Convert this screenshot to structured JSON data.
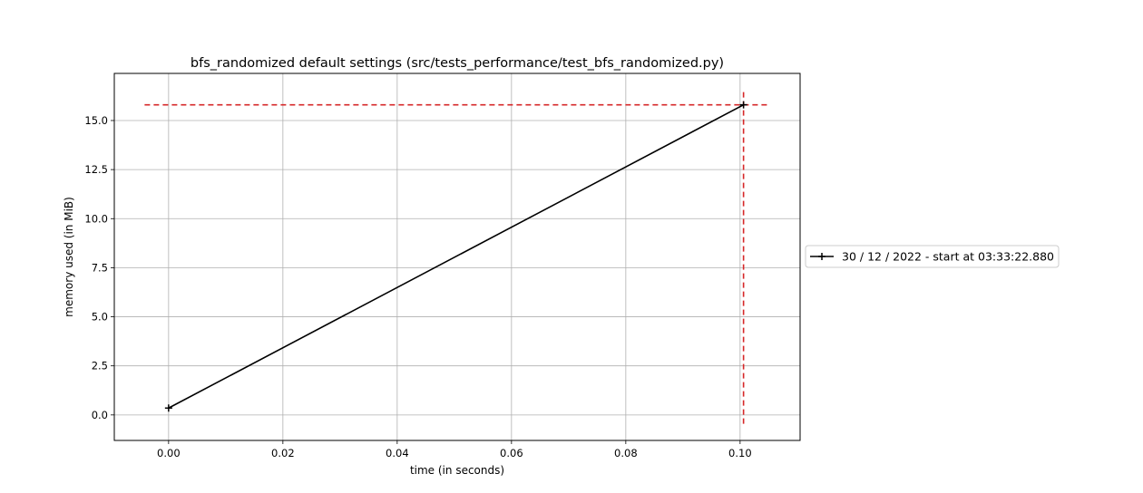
{
  "chart_data": {
    "type": "line",
    "title": "bfs_randomized default settings (src/tests_performance/test_bfs_randomized.py)",
    "xlabel": "time (in seconds)",
    "ylabel": "memory used (in MiB)",
    "xlim": [
      -0.0095,
      0.1105
    ],
    "ylim": [
      -1.3,
      17.4
    ],
    "x_ticks": [
      0.0,
      0.02,
      0.04,
      0.06,
      0.08,
      0.1
    ],
    "x_tick_labels": [
      "0.00",
      "0.02",
      "0.04",
      "0.06",
      "0.08",
      "0.10"
    ],
    "y_ticks": [
      0.0,
      2.5,
      5.0,
      7.5,
      10.0,
      12.5,
      15.0
    ],
    "y_tick_labels": [
      "0.0",
      "2.5",
      "5.0",
      "7.5",
      "10.0",
      "12.5",
      "15.0"
    ],
    "grid": true,
    "legend_position": "center right outside",
    "series": [
      {
        "name": "30 / 12 / 2022 - start at 03:33:22.880",
        "color": "#000000",
        "marker": "+",
        "x": [
          0.0,
          0.1006
        ],
        "y": [
          0.35,
          15.8
        ]
      }
    ],
    "peak_lines": {
      "color": "#d62728",
      "style": "dashed",
      "horizontal": {
        "y": 15.8,
        "x_from": -0.0042,
        "x_to": 0.105
      },
      "vertical": {
        "x": 0.1006,
        "y_from": -0.45,
        "y_to": 16.6
      }
    }
  }
}
